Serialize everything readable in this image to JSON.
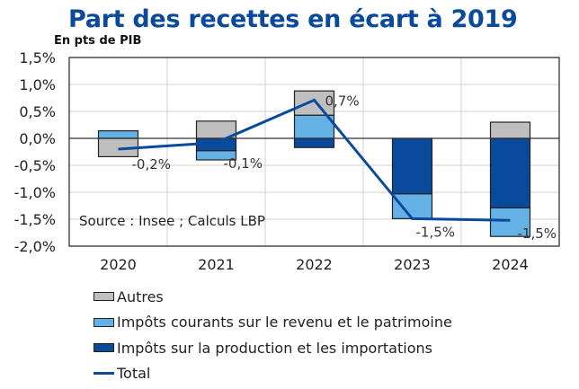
{
  "chart_data": {
    "type": "bar",
    "stacked": true,
    "title": "Part des recettes en écart à 2019",
    "subtitle": "En pts de PIB",
    "xlabel": "",
    "ylabel": "",
    "categories": [
      "2020",
      "2021",
      "2022",
      "2023",
      "2024"
    ],
    "ylim": [
      -2.0,
      1.5
    ],
    "yticks": [
      1.5,
      1.0,
      0.5,
      0.0,
      -0.5,
      -1.0,
      -1.5,
      -2.0
    ],
    "ytick_labels": [
      "1,5%",
      "1,0%",
      "0,5%",
      "0,0%",
      "-0,5%",
      "-1,0%",
      "-1,5%",
      "-2,0%"
    ],
    "grid": true,
    "series": [
      {
        "name": "Impôts sur la production et les importations",
        "kind": "bar",
        "color": "#0a4a9c",
        "values": [
          0.0,
          -0.23,
          -0.17,
          -1.03,
          -1.29
        ]
      },
      {
        "name": "Impôts courants sur le revenu et le patrimoine",
        "kind": "bar",
        "color": "#63b1e5",
        "values": [
          0.14,
          -0.17,
          0.43,
          -0.46,
          -0.53
        ]
      },
      {
        "name": "Autres",
        "kind": "bar",
        "color": "#bfbfbf",
        "values": [
          -0.34,
          0.32,
          0.45,
          0.0,
          0.3
        ]
      },
      {
        "name": "Total",
        "kind": "line",
        "color": "#0a4a9c",
        "values": [
          -0.2,
          -0.08,
          0.71,
          -1.49,
          -1.52
        ]
      }
    ],
    "data_labels": [
      "-0,2%",
      "-0,1%",
      "0,7%",
      "-1,5%",
      "-1,5%"
    ],
    "annotation": "Source : Insee ; Calculs LBP",
    "legend": {
      "placement": "bottom",
      "entries": [
        "Autres",
        "Impôts courants sur le revenu et le patrimoine",
        "Impôts sur la production et les importations",
        "Total"
      ]
    }
  }
}
